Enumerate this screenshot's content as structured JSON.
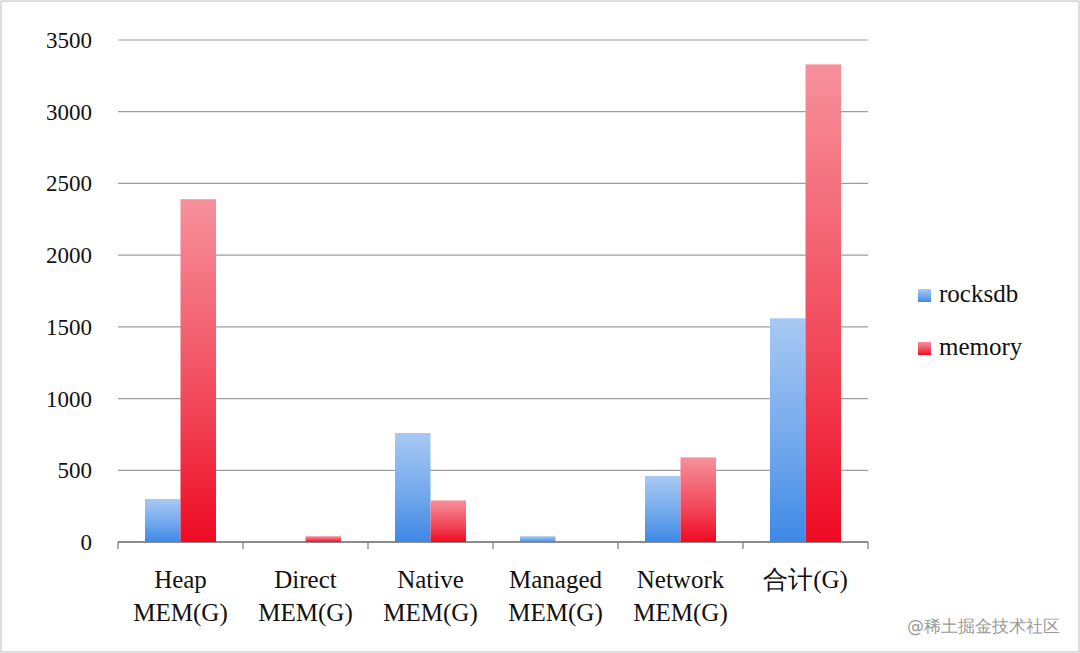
{
  "chart_data": {
    "type": "bar",
    "categories": [
      "Heap\nMEM(G)",
      "Direct\nMEM(G)",
      "Native\nMEM(G)",
      "Managed\nMEM(G)",
      "Network\nMEM(G)",
      "合计(G)"
    ],
    "series": [
      {
        "name": "rocksdb",
        "color": "#3d88e6",
        "values": [
          300,
          0,
          760,
          40,
          460,
          1560
        ]
      },
      {
        "name": "memory",
        "color": "#ee0a22",
        "values": [
          2390,
          40,
          290,
          0,
          590,
          3330
        ]
      }
    ],
    "ylim": [
      0,
      3500
    ],
    "yticks": [
      0,
      500,
      1000,
      1500,
      2000,
      2500,
      3000,
      3500
    ],
    "grid": true,
    "legend": "right",
    "annotations": [
      "@稀土掘金技术社区"
    ]
  }
}
